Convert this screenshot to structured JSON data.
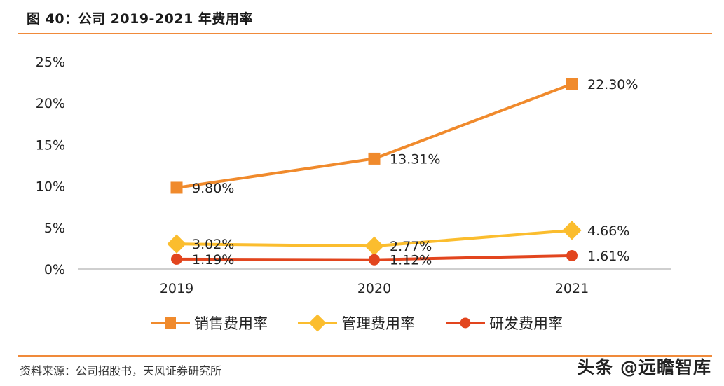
{
  "header": {
    "title": "图 40：公司 2019-2021 年费用率"
  },
  "footer": {
    "source": "资料来源：公司招股书，天风证券研究所",
    "watermark": "头条 @远瞻智库"
  },
  "colors": {
    "rule": "#f08a3a",
    "sales": "#f08a2c",
    "admin": "#fbbd2e",
    "rd": "#e2451e"
  },
  "chart_data": {
    "type": "line",
    "title": "",
    "xlabel": "",
    "ylabel": "",
    "categories": [
      "2019",
      "2020",
      "2021"
    ],
    "ylim": [
      0,
      25
    ],
    "yticks": [
      "0%",
      "5%",
      "10%",
      "15%",
      "20%",
      "25%"
    ],
    "grid": false,
    "legend_position": "bottom",
    "series": [
      {
        "name": "销售费用率",
        "values": [
          9.8,
          13.31,
          22.3
        ],
        "labels": [
          "9.80%",
          "13.31%",
          "22.30%"
        ],
        "marker": "square",
        "color": "#f08a2c"
      },
      {
        "name": "管理费用率",
        "values": [
          3.02,
          2.77,
          4.66
        ],
        "labels": [
          "3.02%",
          "2.77%",
          "4.66%"
        ],
        "marker": "diamond",
        "color": "#fbbd2e"
      },
      {
        "name": "研发费用率",
        "values": [
          1.19,
          1.12,
          1.61
        ],
        "labels": [
          "1.19%",
          "1.12%",
          "1.61%"
        ],
        "marker": "circle",
        "color": "#e2451e"
      }
    ]
  }
}
